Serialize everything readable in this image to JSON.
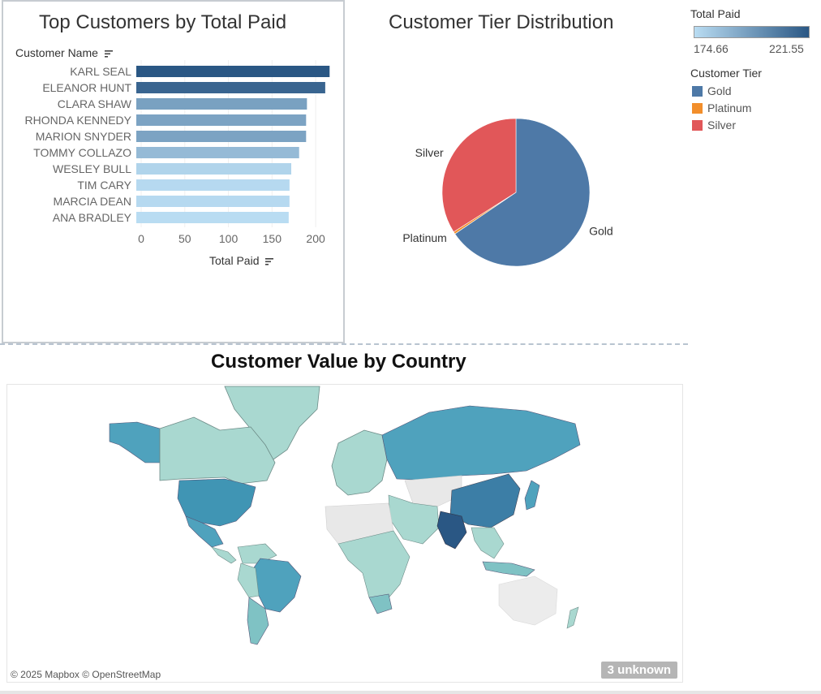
{
  "bar_chart": {
    "title": "Top Customers by Total Paid",
    "y_header": "Customer Name",
    "x_label": "Total Paid",
    "sort_icon": "sort-descending-icon"
  },
  "pie_chart": {
    "title": "Customer Tier Distribution"
  },
  "legend_total": {
    "title": "Total Paid",
    "min_label": "174.66",
    "max_label": "221.55",
    "color_low": "#b9dcf2",
    "color_high": "#2a5784"
  },
  "legend_tier": {
    "title": "Customer Tier",
    "items": [
      {
        "label": "Gold",
        "color": "#4e79a7"
      },
      {
        "label": "Platinum",
        "color": "#f28e2b"
      },
      {
        "label": "Silver",
        "color": "#e15759"
      }
    ]
  },
  "map": {
    "title": "Customer Value by Country",
    "credits": "© 2025 Mapbox © OpenStreetMap",
    "unknown_badge": "3 unknown"
  },
  "chart_data": [
    {
      "type": "bar",
      "orientation": "horizontal",
      "title": "Top Customers by Total Paid",
      "xlabel": "Total Paid",
      "ylabel": "Customer Name",
      "categories": [
        "KARL SEAL",
        "ELEANOR HUNT",
        "CLARA SHAW",
        "RHONDA KENNEDY",
        "MARION SNYDER",
        "TOMMY COLLAZO",
        "WESLEY BULL",
        "TIM CARY",
        "MARCIA DEAN",
        "ANA BRADLEY"
      ],
      "values": [
        221.55,
        216.54,
        195.58,
        194.61,
        194.61,
        186.62,
        177.6,
        175.61,
        175.58,
        174.66
      ],
      "xlim": [
        0,
        225
      ],
      "xticks": [
        0,
        50,
        100,
        150,
        200
      ],
      "color_scale": [
        "#b9dcf2",
        "#2a5784"
      ],
      "grid": "vertical gridlines"
    },
    {
      "type": "pie",
      "title": "Customer Tier Distribution",
      "labels": [
        "Gold",
        "Platinum",
        "Silver"
      ],
      "values": [
        65.5,
        0.5,
        34.0
      ],
      "colors": [
        "#4e79a7",
        "#f28e2b",
        "#e15759"
      ]
    }
  ]
}
